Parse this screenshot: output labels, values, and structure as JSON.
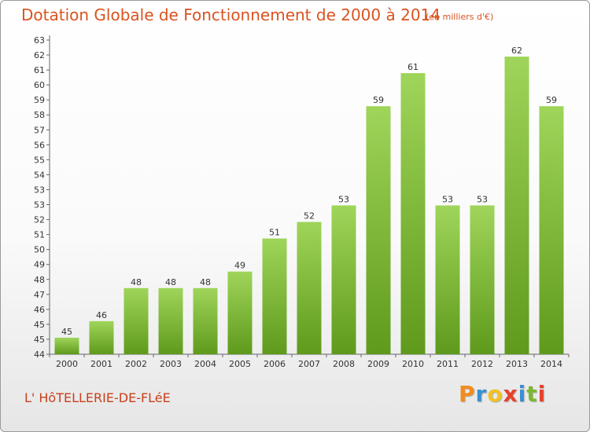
{
  "header": {
    "title": "Dotation Globale de Fonctionnement de 2000 à 2014",
    "unit": "(en milliers d'€)"
  },
  "footer": {
    "commune": "L' HôTELLERIE-DE-FLéE",
    "logo_letters": [
      "P",
      "r",
      "o",
      "x",
      "i",
      "t",
      "i"
    ]
  },
  "colors": {
    "title": "#d9531f",
    "bar_light": "#9fd55a",
    "bar_dark": "#5f9a1c",
    "logo": [
      "#f28c1e",
      "#3a8fd1",
      "#f2c21e",
      "#e8412c",
      "#3a8fd1",
      "#7ab82d",
      "#e8412c"
    ]
  },
  "chart_data": {
    "type": "bar",
    "title": "Dotation Globale de Fonctionnement de 2000 à 2014",
    "subtitle": "(en milliers d'€)",
    "categories": [
      "2000",
      "2001",
      "2002",
      "2003",
      "2004",
      "2005",
      "2006",
      "2007",
      "2008",
      "2009",
      "2010",
      "2011",
      "2012",
      "2013",
      "2014"
    ],
    "values": [
      45,
      46,
      48,
      48,
      48,
      49,
      51,
      52,
      53,
      59,
      61,
      53,
      53,
      62,
      59
    ],
    "value_labels": [
      "45",
      "46",
      "48",
      "48",
      "48",
      "49",
      "51",
      "52",
      "53",
      "59",
      "61",
      "53",
      "53",
      "62",
      "59"
    ],
    "yticks": [
      "44",
      "45",
      "45",
      "46",
      "47",
      "48",
      "49",
      "50",
      "51",
      "52",
      "53",
      "53",
      "54",
      "55",
      "56",
      "57",
      "58",
      "59",
      "60",
      "61",
      "62",
      "63"
    ],
    "ylim": [
      44,
      63
    ],
    "grid": false,
    "xlabel": "",
    "ylabel": ""
  }
}
